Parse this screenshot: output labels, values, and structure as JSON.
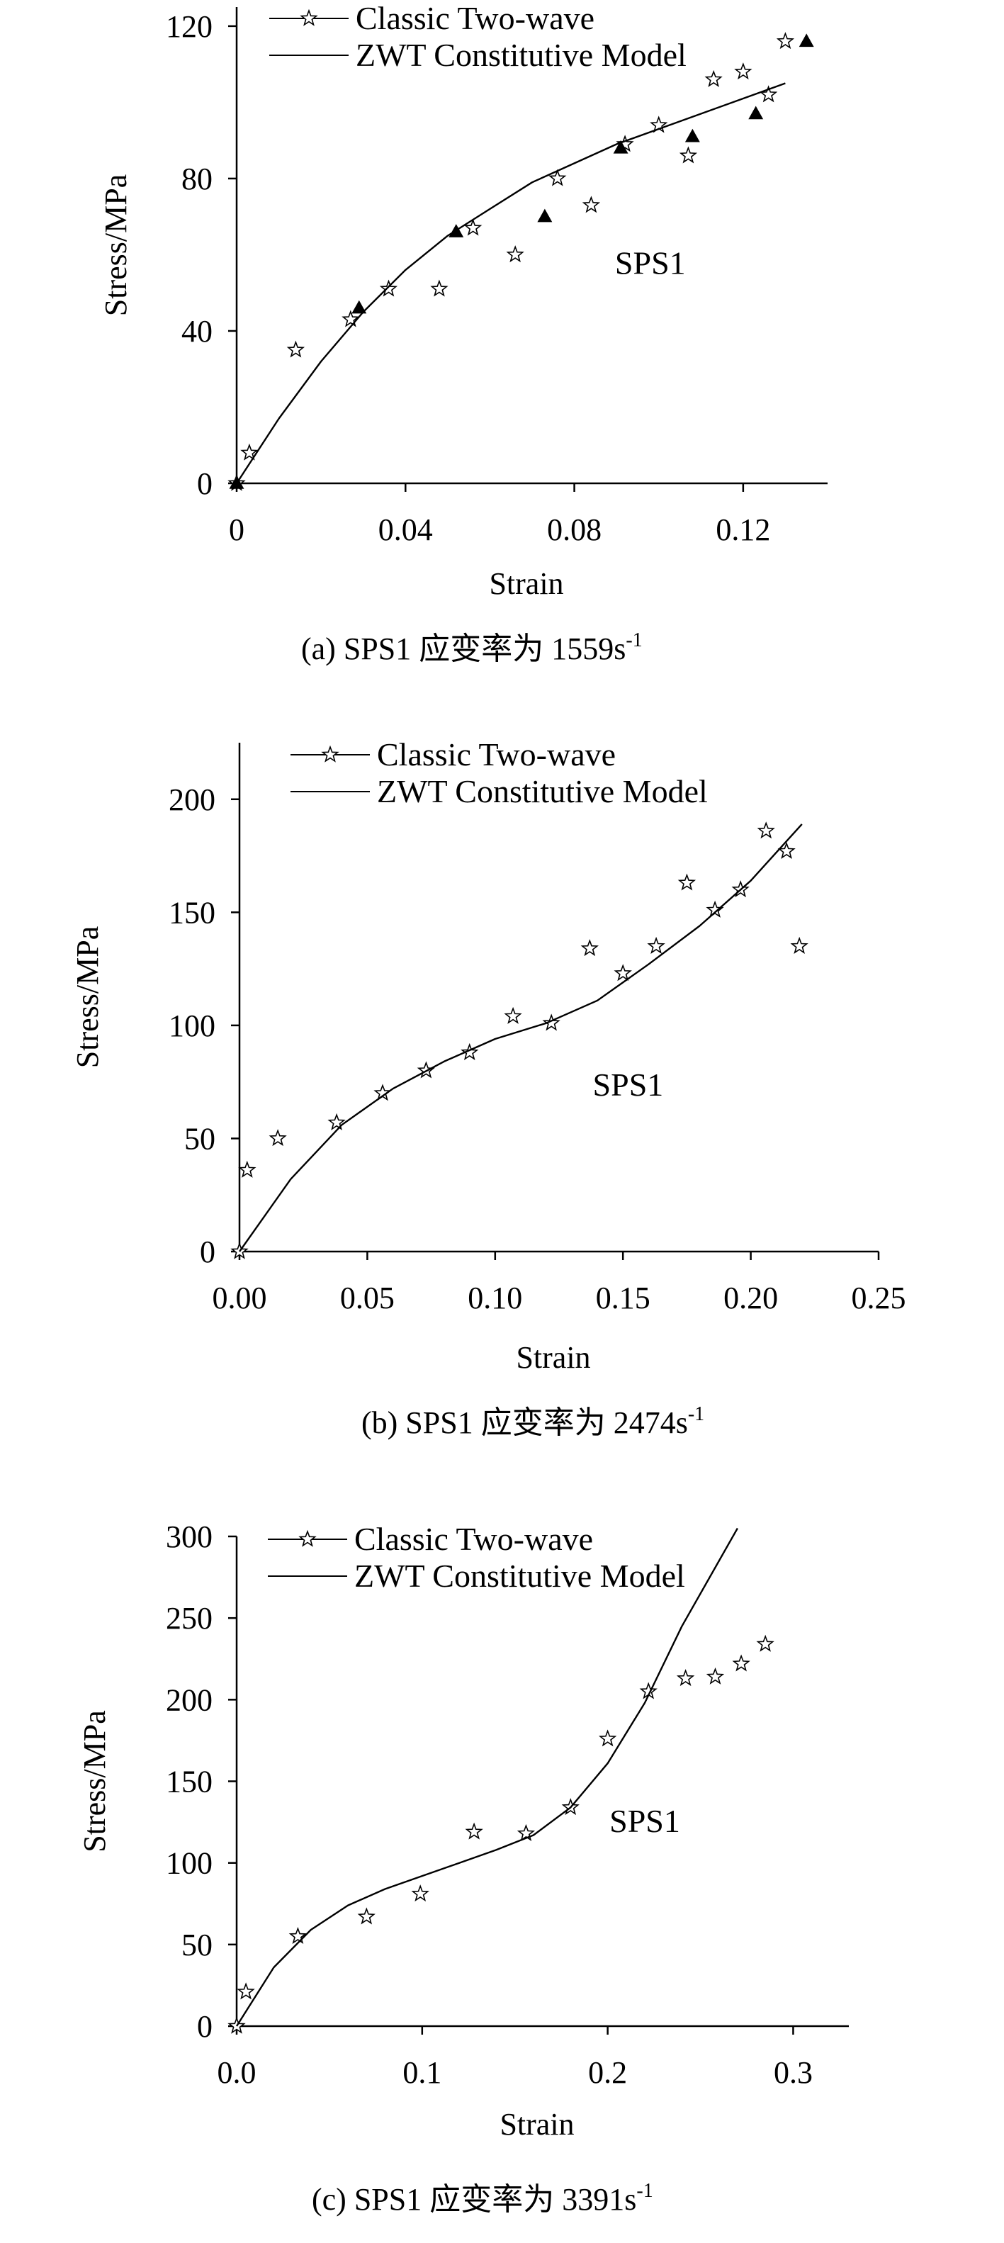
{
  "chart_data": [
    {
      "type": "scatter",
      "title": "",
      "caption": "(a) SPS1 应变率为 1559s",
      "caption_sup": "-1",
      "xlabel": "Strain",
      "ylabel": "Stress/MPa",
      "xlim": [
        0,
        0.14
      ],
      "ylim": [
        0,
        125
      ],
      "xticks": [
        0,
        0.04,
        0.08,
        0.12
      ],
      "xtick_labels": [
        "0",
        "0.04",
        "0.08",
        "0.12"
      ],
      "yticks": [
        0,
        40,
        80,
        120
      ],
      "ytick_labels": [
        "0",
        "40",
        "80",
        "120"
      ],
      "annotation": "SPS1",
      "annotation_pos": [
        0.098,
        55
      ],
      "legend": [
        "Classic Two-wave",
        "ZWT Constitutive Model"
      ],
      "series": [
        {
          "name": "Classic Two-wave",
          "marker": "star",
          "x": [
            0.0,
            0.003,
            0.014,
            0.027,
            0.036,
            0.048,
            0.056,
            0.066,
            0.076,
            0.084,
            0.092,
            0.1,
            0.107,
            0.113,
            0.12,
            0.126,
            0.13
          ],
          "y": [
            0,
            8,
            35,
            43,
            51,
            51,
            67,
            60,
            80,
            73,
            89,
            94,
            86,
            106,
            108,
            102,
            116
          ]
        },
        {
          "name": "",
          "marker": "triangle",
          "x": [
            0.0,
            0.029,
            0.052,
            0.073,
            0.091,
            0.108,
            0.123,
            0.135
          ],
          "y": [
            0,
            46,
            66,
            70,
            88,
            91,
            97,
            116
          ]
        },
        {
          "name": "ZWT Constitutive Model",
          "marker": "line",
          "x": [
            0,
            0.01,
            0.02,
            0.03,
            0.04,
            0.05,
            0.06,
            0.07,
            0.08,
            0.09,
            0.1,
            0.11,
            0.12,
            0.13
          ],
          "y": [
            0,
            17,
            32,
            45,
            56,
            65,
            72,
            79,
            84,
            89,
            93,
            97,
            101,
            105
          ]
        }
      ]
    },
    {
      "type": "scatter",
      "title": "",
      "caption": "(b) SPS1 应变率为 2474s",
      "caption_sup": "-1",
      "xlabel": "Strain",
      "ylabel": "Stress/MPa",
      "xlim": [
        0,
        0.25
      ],
      "ylim": [
        0,
        225
      ],
      "xticks": [
        0,
        0.05,
        0.1,
        0.15,
        0.2,
        0.25
      ],
      "xtick_labels": [
        "0.00",
        "0.05",
        "0.10",
        "0.15",
        "0.20",
        "0.25"
      ],
      "yticks": [
        0,
        50,
        100,
        150,
        200
      ],
      "ytick_labels": [
        "0",
        "50",
        "100",
        "150",
        "200"
      ],
      "annotation": "SPS1",
      "annotation_pos": [
        0.152,
        69
      ],
      "legend": [
        "Classic Two-wave",
        "ZWT Constitutive Model"
      ],
      "series": [
        {
          "name": "Classic Two-wave",
          "marker": "star",
          "x": [
            0.0,
            0.003,
            0.015,
            0.038,
            0.056,
            0.073,
            0.09,
            0.107,
            0.122,
            0.137,
            0.15,
            0.163,
            0.175,
            0.186,
            0.196,
            0.206,
            0.214,
            0.219
          ],
          "y": [
            0,
            36,
            50,
            57,
            70,
            80,
            88,
            104,
            101,
            134,
            123,
            135,
            163,
            151,
            160,
            186,
            177,
            135
          ]
        },
        {
          "name": "ZWT Constitutive Model",
          "marker": "line",
          "x": [
            0,
            0.02,
            0.04,
            0.06,
            0.08,
            0.1,
            0.12,
            0.14,
            0.16,
            0.18,
            0.2,
            0.22
          ],
          "y": [
            0,
            32,
            56,
            72,
            84,
            94,
            101,
            111,
            127,
            144,
            164,
            189
          ]
        }
      ]
    },
    {
      "type": "scatter",
      "title": "",
      "caption": "(c) SPS1 应变率为 3391s",
      "caption_sup": "-1",
      "xlabel": "Strain",
      "ylabel": "Stress/MPa",
      "xlim": [
        0,
        0.33
      ],
      "ylim": [
        0,
        300
      ],
      "xticks": [
        0,
        0.1,
        0.2,
        0.3
      ],
      "xtick_labels": [
        "0.0",
        "0.1",
        "0.2",
        "0.3"
      ],
      "yticks": [
        0,
        50,
        100,
        150,
        200,
        250,
        300
      ],
      "ytick_labels": [
        "0",
        "50",
        "100",
        "150",
        "200",
        "250",
        "300"
      ],
      "annotation": "SPS1",
      "annotation_pos": [
        0.22,
        119
      ],
      "legend": [
        "Classic Two-wave",
        "ZWT Constitutive Model"
      ],
      "series": [
        {
          "name": "Classic Two-wave",
          "marker": "star",
          "x": [
            0.0,
            0.005,
            0.033,
            0.07,
            0.099,
            0.128,
            0.156,
            0.18,
            0.2,
            0.222,
            0.242,
            0.258,
            0.272,
            0.285
          ],
          "y": [
            0,
            21,
            55,
            67,
            81,
            119,
            118,
            134,
            176,
            205,
            213,
            214,
            222,
            234
          ]
        },
        {
          "name": "ZWT Constitutive Model",
          "marker": "line",
          "x": [
            0,
            0.02,
            0.04,
            0.06,
            0.08,
            0.1,
            0.12,
            0.14,
            0.16,
            0.18,
            0.2,
            0.22,
            0.24,
            0.26,
            0.27
          ],
          "y": [
            0,
            36,
            59,
            74,
            84,
            92,
            100,
            108,
            117,
            134,
            161,
            198,
            245,
            285,
            305
          ]
        }
      ]
    }
  ]
}
